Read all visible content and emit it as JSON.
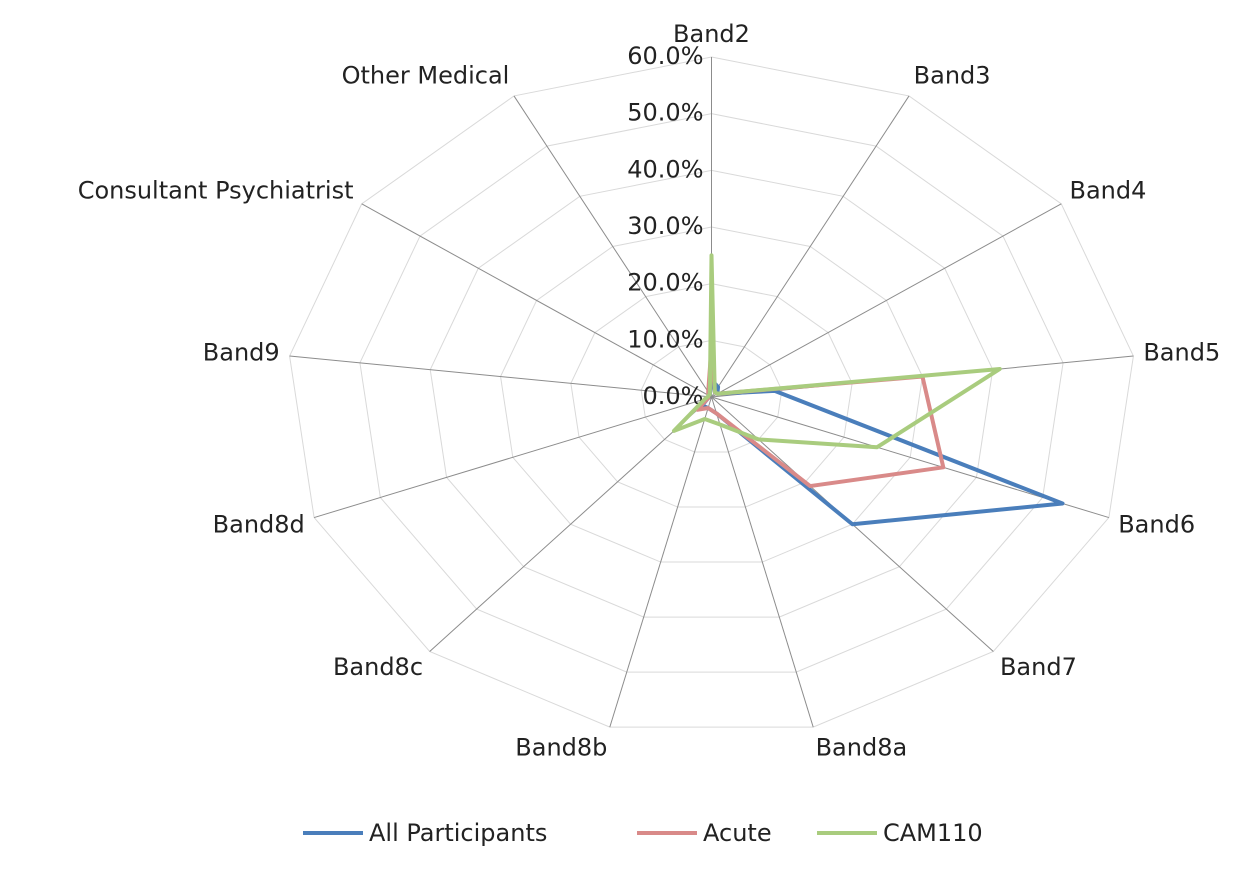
{
  "chart_data": {
    "type": "radar",
    "categories": [
      "Band2",
      "Band3",
      "Band4",
      "Band5",
      "Band6",
      "Band7",
      "Band8a",
      "Band8b",
      "Band8c",
      "Band8d",
      "Band9",
      "Consultant Psychiatrist",
      "Other Medical"
    ],
    "series": [
      {
        "name": "All Participants",
        "color": "#4a7ebb",
        "values": [
          3,
          2,
          1,
          9,
          53,
          30,
          3,
          2,
          2,
          0.5,
          0.5,
          0.5,
          0.5
        ]
      },
      {
        "name": "Acute",
        "color": "#d98a89",
        "values": [
          9,
          1,
          1,
          30,
          35,
          21,
          3,
          2,
          3,
          0.5,
          0.5,
          0.5,
          1
        ]
      },
      {
        "name": "CAM110",
        "color": "#a9cc7e",
        "values": [
          25,
          1,
          1,
          41,
          25,
          10,
          5,
          4,
          8,
          1,
          0.5,
          0.5,
          0.5
        ]
      }
    ],
    "ylim": [
      0,
      60
    ],
    "yticks": [
      {
        "value": 0,
        "label": "0.0%"
      },
      {
        "value": 10,
        "label": "10.0%"
      },
      {
        "value": 20,
        "label": "20.0%"
      },
      {
        "value": 30,
        "label": "30.0%"
      },
      {
        "value": 40,
        "label": "40.0%"
      },
      {
        "value": 50,
        "label": "50.0%"
      },
      {
        "value": 60,
        "label": "60.0%"
      }
    ],
    "grid": true,
    "legend": "bottom"
  }
}
